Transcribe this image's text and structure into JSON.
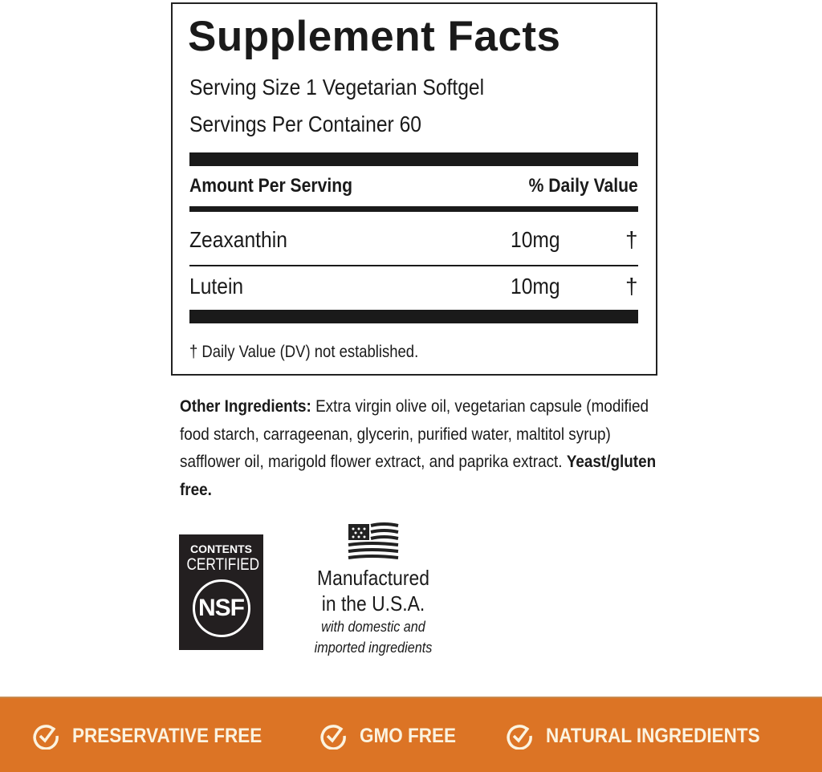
{
  "facts": {
    "title": "Supplement Facts",
    "serving_size": "Serving Size 1 Vegetarian Softgel",
    "servings_per_container": "Servings Per Container 60",
    "amount_header": "Amount Per Serving",
    "dv_header": "% Daily Value",
    "rows": [
      {
        "name": "Zeaxanthin",
        "amount": "10mg",
        "dv": "†"
      },
      {
        "name": "Lutein",
        "amount": "10mg",
        "dv": "†"
      }
    ],
    "footnote": "† Daily Value (DV) not established."
  },
  "other_ingredients": {
    "label": "Other Ingredients:",
    "text": " Extra virgin olive oil, vegetarian capsule (modified food starch, carrageenan, glycerin, purified water, maltitol syrup) safflower oil, marigold flower extract, and paprika extract. ",
    "bold_suffix": "Yeast/gluten free."
  },
  "nsf": {
    "line1": "CONTENTS",
    "line2": "CERTIFIED",
    "mark": "NSF"
  },
  "usa": {
    "line1": "Manufactured",
    "line2": "in the U.S.A.",
    "line3": "with domestic and",
    "line4": "imported ingredients",
    "icon": "us-flag-icon"
  },
  "banner": {
    "color": "#dc7425",
    "items": [
      {
        "label": "PRESERVATIVE FREE",
        "icon": "check-circle-icon"
      },
      {
        "label": "GMO FREE",
        "icon": "check-circle-icon"
      },
      {
        "label": "NATURAL INGREDIENTS",
        "icon": "check-circle-icon"
      }
    ]
  }
}
